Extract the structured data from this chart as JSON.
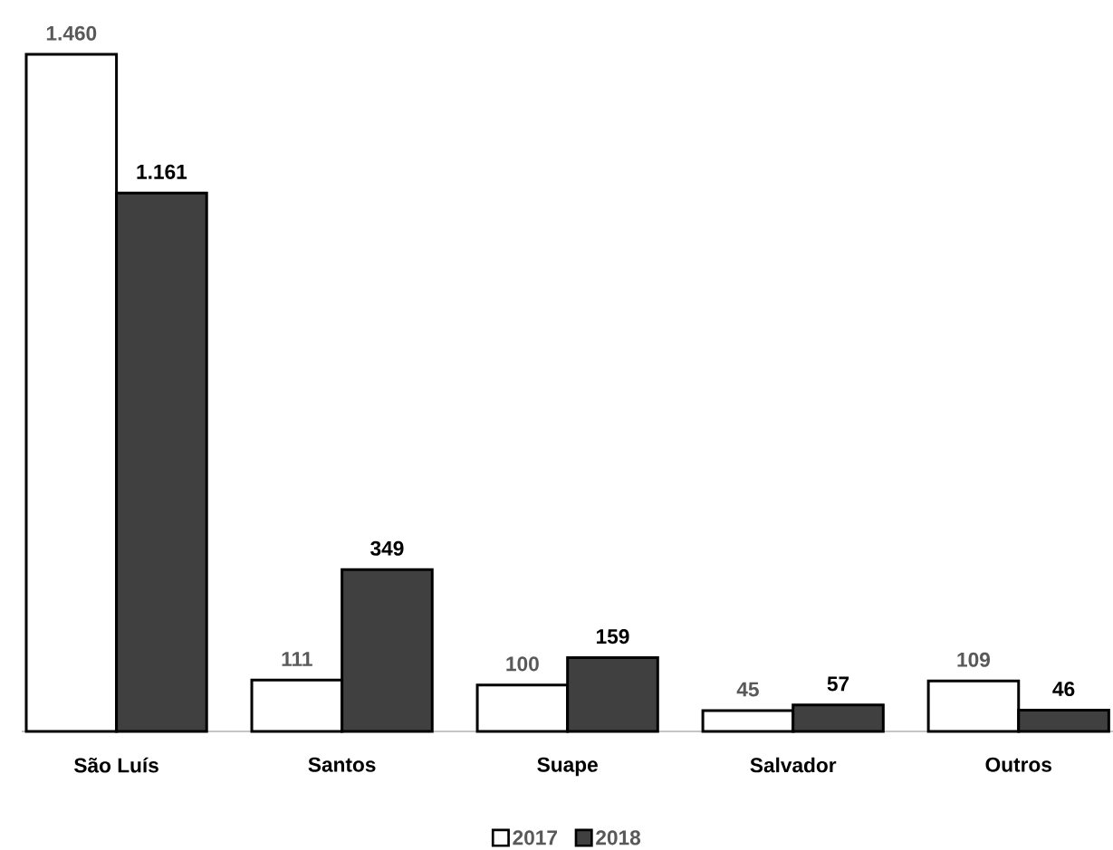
{
  "chart_data": {
    "type": "bar",
    "categories": [
      "São Luís",
      "Santos",
      "Suape",
      "Salvador",
      "Outros"
    ],
    "series": [
      {
        "name": "2017",
        "color": "#ffffff",
        "values": [
          1460,
          111,
          100,
          45,
          109
        ],
        "value_labels": [
          "1.460",
          "111",
          "100",
          "45",
          "109"
        ]
      },
      {
        "name": "2018",
        "color": "#404040",
        "values": [
          1161,
          349,
          159,
          57,
          46
        ],
        "value_labels": [
          "1.161",
          "349",
          "159",
          "57",
          "46"
        ]
      }
    ],
    "legend": "bottom"
  }
}
